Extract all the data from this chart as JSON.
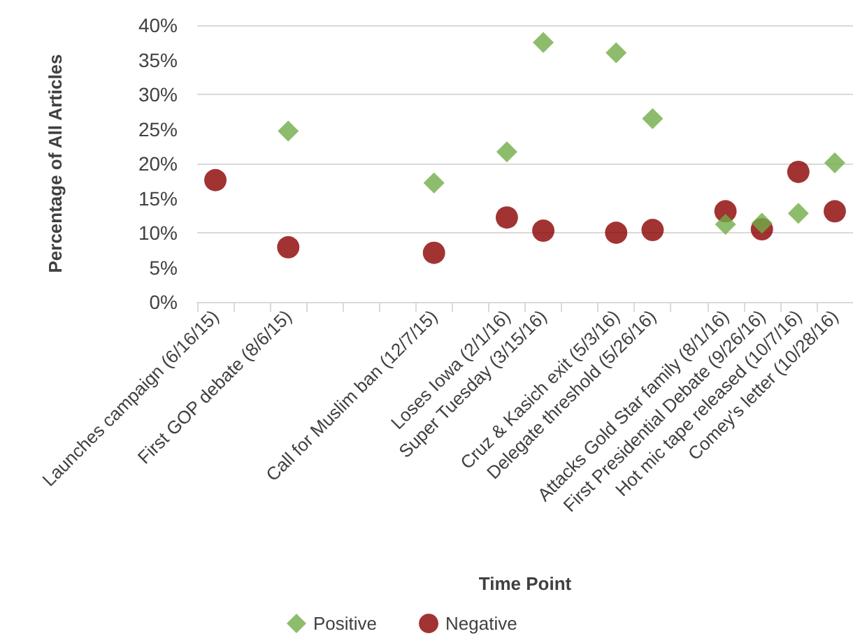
{
  "chart_data": {
    "type": "scatter",
    "xlabel": "Time Point",
    "ylabel": "Percentage of All Articles",
    "categories": [
      "Launches campaign (6/16/15)",
      null,
      "First GOP debate (8/6/15)",
      null,
      null,
      null,
      "Call for Muslim ban (12/7/15)",
      null,
      "Loses Iowa (2/1/16)",
      "Super Tuesday (3/15/16)",
      null,
      "Cruz & Kasich exit (5/3/16)",
      "Delegate threshold (5/26/16)",
      null,
      "Attacks Gold Star family (8/1/16)",
      "First Presidential Debate (9/26/16)",
      "Hot mic tape released (10/7/16)",
      "Comey's letter (10/28/16)"
    ],
    "series": [
      {
        "name": "Positive",
        "color": "#70ad47",
        "marker": "diamond",
        "values": [
          null,
          null,
          24.7,
          null,
          null,
          null,
          17.2,
          null,
          21.7,
          37.5,
          null,
          36.0,
          26.5,
          null,
          11.2,
          11.4,
          12.8,
          20.1
        ]
      },
      {
        "name": "Negative",
        "color": "#8b0000",
        "marker": "circle",
        "values": [
          17.6,
          null,
          7.9,
          null,
          null,
          null,
          7.1,
          null,
          12.2,
          10.3,
          null,
          10.0,
          10.4,
          null,
          13.1,
          10.5,
          18.8,
          13.1
        ]
      }
    ],
    "ylim": [
      0,
      40
    ],
    "yticks": [
      {
        "value": 0,
        "label": "0%"
      },
      {
        "value": 5,
        "label": "5%"
      },
      {
        "value": 10,
        "label": "10%"
      },
      {
        "value": 15,
        "label": "15%"
      },
      {
        "value": 20,
        "label": "20%"
      },
      {
        "value": 25,
        "label": "25%"
      },
      {
        "value": 30,
        "label": "30%"
      },
      {
        "value": 35,
        "label": "35%"
      },
      {
        "value": 40,
        "label": "40%"
      }
    ],
    "grid": "y",
    "legend": "bottom"
  }
}
